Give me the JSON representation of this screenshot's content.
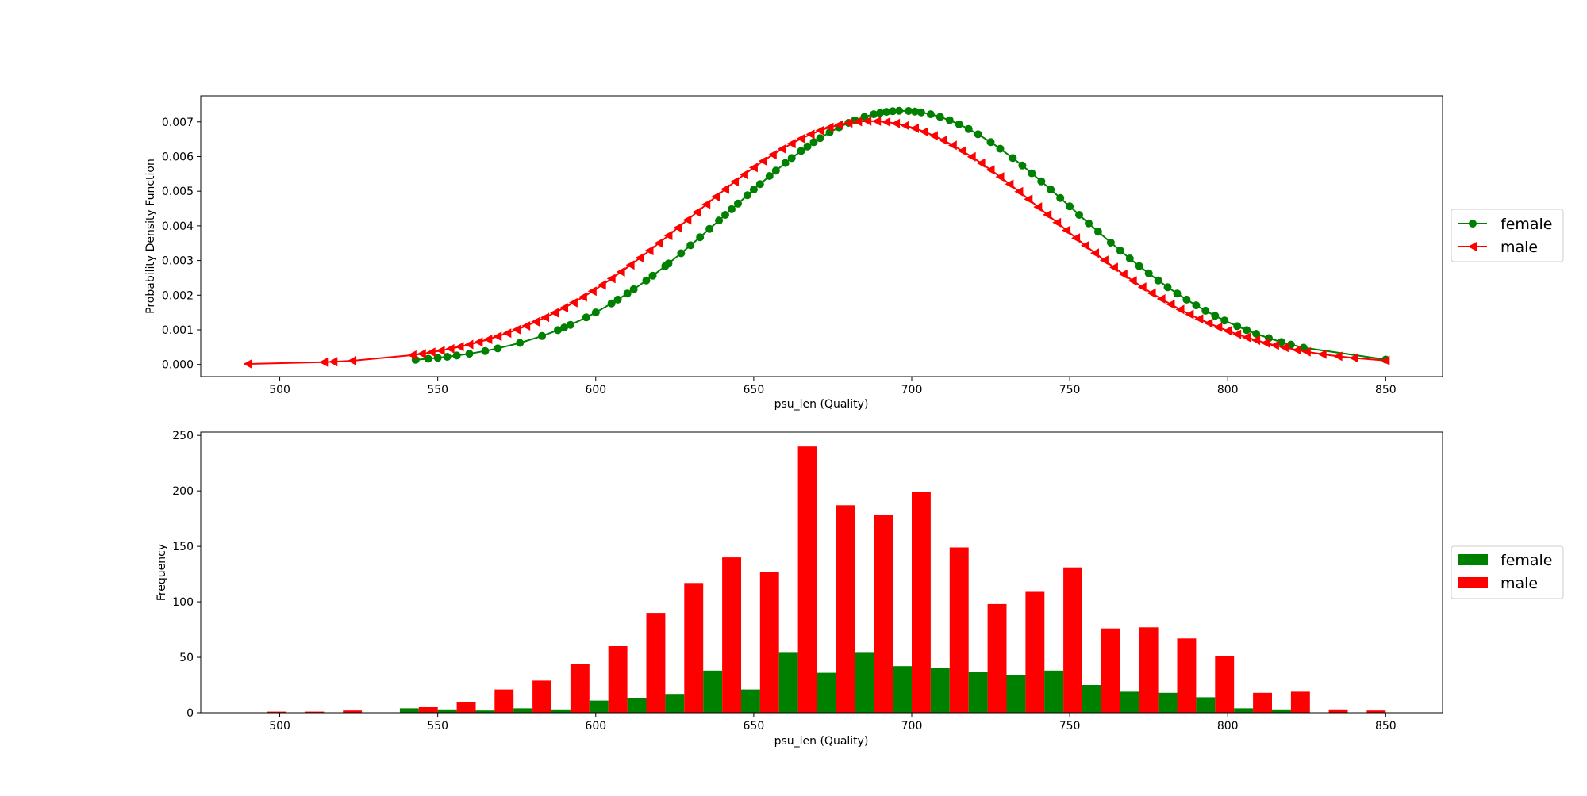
{
  "chart_data": [
    {
      "type": "line",
      "xlabel": "psu_len (Quality)",
      "ylabel": "Probability Density Function",
      "xlim": [
        475,
        868
      ],
      "ylim": [
        -0.00035,
        0.00775
      ],
      "xticks": [
        500,
        550,
        600,
        650,
        700,
        750,
        800,
        850
      ],
      "yticks": [
        0.0,
        0.001,
        0.002,
        0.003,
        0.004,
        0.005,
        0.006,
        0.007
      ],
      "ytick_labels": [
        "0.000",
        "0.001",
        "0.002",
        "0.003",
        "0.004",
        "0.005",
        "0.006",
        "0.007"
      ],
      "legend": {
        "position": "right-outside",
        "entries": [
          "female",
          "male"
        ]
      },
      "series": [
        {
          "name": "female",
          "color": "#008000",
          "marker": "circle",
          "mean": 697,
          "sd": 54.5,
          "x": [
            543,
            547,
            550,
            553,
            556,
            560,
            565,
            569,
            576,
            583,
            588,
            590,
            592,
            597,
            600,
            605,
            607,
            610,
            612,
            616,
            618,
            622,
            623,
            627,
            630,
            633,
            636,
            639,
            641,
            643,
            645,
            648,
            650,
            652,
            655,
            657,
            660,
            662,
            665,
            667,
            669,
            671,
            674,
            677,
            680,
            682,
            685,
            688,
            690,
            692,
            694,
            696,
            699,
            701,
            703,
            706,
            709,
            712,
            715,
            718,
            721,
            725,
            728,
            732,
            735,
            738,
            741,
            744,
            747,
            750,
            753,
            756,
            759,
            763,
            766,
            769,
            772,
            775,
            778,
            781,
            784,
            787,
            790,
            793,
            796,
            799,
            803,
            806,
            809,
            813,
            817,
            820,
            824,
            850
          ]
        },
        {
          "name": "male",
          "color": "#ff0000",
          "marker": "triangle-left",
          "mean": 687,
          "sd": 56.8,
          "x": [
            490,
            514,
            517,
            523,
            542,
            545,
            548,
            551,
            554,
            557,
            560,
            563,
            566,
            569,
            572,
            575,
            578,
            581,
            584,
            587,
            590,
            593,
            596,
            599,
            602,
            605,
            608,
            611,
            614,
            617,
            620,
            623,
            626,
            629,
            632,
            635,
            638,
            641,
            644,
            647,
            650,
            653,
            656,
            659,
            662,
            665,
            668,
            671,
            674,
            677,
            680,
            683,
            686,
            689,
            692,
            695,
            698,
            701,
            704,
            707,
            710,
            713,
            716,
            719,
            722,
            725,
            728,
            731,
            734,
            737,
            740,
            743,
            746,
            749,
            752,
            755,
            758,
            761,
            764,
            767,
            770,
            773,
            776,
            779,
            782,
            785,
            788,
            791,
            794,
            797,
            800,
            803,
            806,
            809,
            812,
            815,
            818,
            822,
            825,
            830,
            835,
            840,
            850
          ]
        }
      ]
    },
    {
      "type": "bar",
      "xlabel": "psu_len (Quality)",
      "ylabel": "Frequency",
      "xlim": [
        475,
        868
      ],
      "ylim": [
        0,
        253
      ],
      "xticks": [
        500,
        550,
        600,
        650,
        700,
        750,
        800,
        850
      ],
      "yticks": [
        0,
        50,
        100,
        150,
        200,
        250
      ],
      "legend": {
        "position": "right-outside",
        "entries": [
          "female",
          "male"
        ]
      },
      "bin_start": 490,
      "bin_width": 12,
      "series": [
        {
          "name": "female",
          "color": "#008000",
          "values": [
            0,
            0,
            0,
            0,
            4,
            3,
            2,
            4,
            3,
            11,
            13,
            17,
            38,
            21,
            54,
            36,
            54,
            42,
            40,
            37,
            34,
            38,
            25,
            19,
            18,
            14,
            4,
            3,
            0,
            0
          ]
        },
        {
          "name": "male",
          "color": "#ff0000",
          "values": [
            1,
            1,
            2,
            0,
            5,
            10,
            21,
            29,
            44,
            60,
            90,
            117,
            140,
            127,
            240,
            187,
            178,
            199,
            149,
            98,
            109,
            131,
            76,
            77,
            67,
            51,
            18,
            19,
            3,
            2
          ]
        }
      ]
    }
  ]
}
